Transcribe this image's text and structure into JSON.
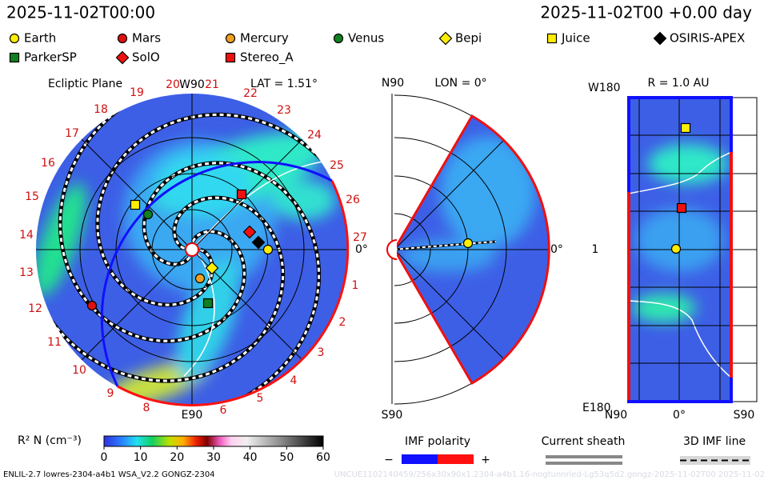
{
  "header": {
    "time_left": "2025-11-02T00:00",
    "time_right": "2025-11-02T00 +0.00 day"
  },
  "legend": [
    "Earth",
    "Mars",
    "Mercury",
    "Venus",
    "Bepi",
    "Juice",
    "OSIRIS-APEX",
    "ParkerSP",
    "SolO",
    "Stereo_A"
  ],
  "ecliptic": {
    "title": "Ecliptic Plane",
    "lat": "LAT = 1.51°",
    "top": "W90",
    "bottom": "E90",
    "right": "0°",
    "hours": [
      "1",
      "2",
      "3",
      "4",
      "5",
      "6",
      "8",
      "9",
      "10",
      "11",
      "12",
      "13",
      "14",
      "15",
      "16",
      "17",
      "18",
      "19",
      "20",
      "21",
      "22",
      "23",
      "24",
      "25",
      "26",
      "27"
    ]
  },
  "meridional": {
    "top": "N90",
    "title": "LON = 0°",
    "right": "0°",
    "bottom": "S90"
  },
  "radial": {
    "title": "R = 1.0 AU",
    "top": "W180",
    "middle": "1",
    "bottom": "E180",
    "x_labels": [
      "N90",
      "0°",
      "S90"
    ]
  },
  "colorbar": {
    "label": "R² N (cm⁻³)",
    "ticks": [
      0,
      10,
      20,
      30,
      40,
      50,
      60
    ]
  },
  "imf": {
    "title": "IMF polarity",
    "minus": "−",
    "plus": "+"
  },
  "sheath": {
    "title": "Current sheath"
  },
  "imf_line": {
    "title": "3D IMF line"
  },
  "footer": {
    "left": "ENLIL-2.7 lowres-2304-a4b1 WSA_V2.2 GONGZ-2304",
    "right": "UNCUE1102140459/256x30x90x1.2304-a4b1.16-nogtunnrled-Lg53q5d2.gongz-2025-11-02T00   2025-11-02"
  }
}
